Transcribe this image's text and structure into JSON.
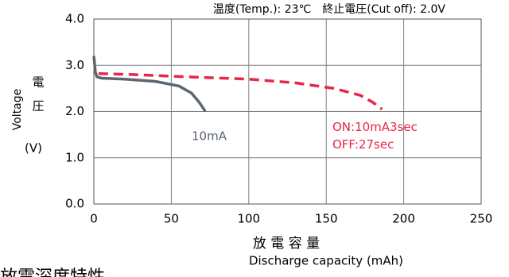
{
  "chart_data": {
    "type": "line",
    "title": "温度(Temp.): 23℃　終止電圧(Cut off): 2.0V",
    "y_label": [
      "Voltage",
      "電",
      "圧",
      "(V)"
    ],
    "x_label": [
      "放 電 容 量",
      "Discharge capacity (mAh)"
    ],
    "caption": "放電深度特性",
    "xlim": [
      0,
      250
    ],
    "xticks": [
      0,
      50,
      100,
      150,
      200,
      250
    ],
    "ylim": [
      0,
      4
    ],
    "yticks": [
      {
        "value": 0,
        "label": "0.0"
      },
      {
        "value": 1,
        "label": "1.0"
      },
      {
        "value": 2,
        "label": "2.0"
      },
      {
        "value": 3,
        "label": "3.0"
      },
      {
        "value": 4,
        "label": "4.0"
      }
    ],
    "grid": true,
    "series": [
      {
        "name": "10mA",
        "color": "#5b6670",
        "dashed": false,
        "x": [
          0,
          1,
          2,
          5,
          20,
          40,
          55,
          63,
          68,
          72
        ],
        "values": [
          3.2,
          2.85,
          2.75,
          2.72,
          2.7,
          2.65,
          2.55,
          2.4,
          2.2,
          2.0
        ]
      },
      {
        "name": "ON:10mA3sec\nOFF:27sec",
        "color": "#e8254a",
        "dashed": true,
        "x": [
          3,
          25,
          60,
          100,
          130,
          155,
          172,
          180,
          186
        ],
        "values": [
          2.82,
          2.8,
          2.75,
          2.7,
          2.62,
          2.5,
          2.35,
          2.2,
          2.05
        ]
      }
    ]
  }
}
